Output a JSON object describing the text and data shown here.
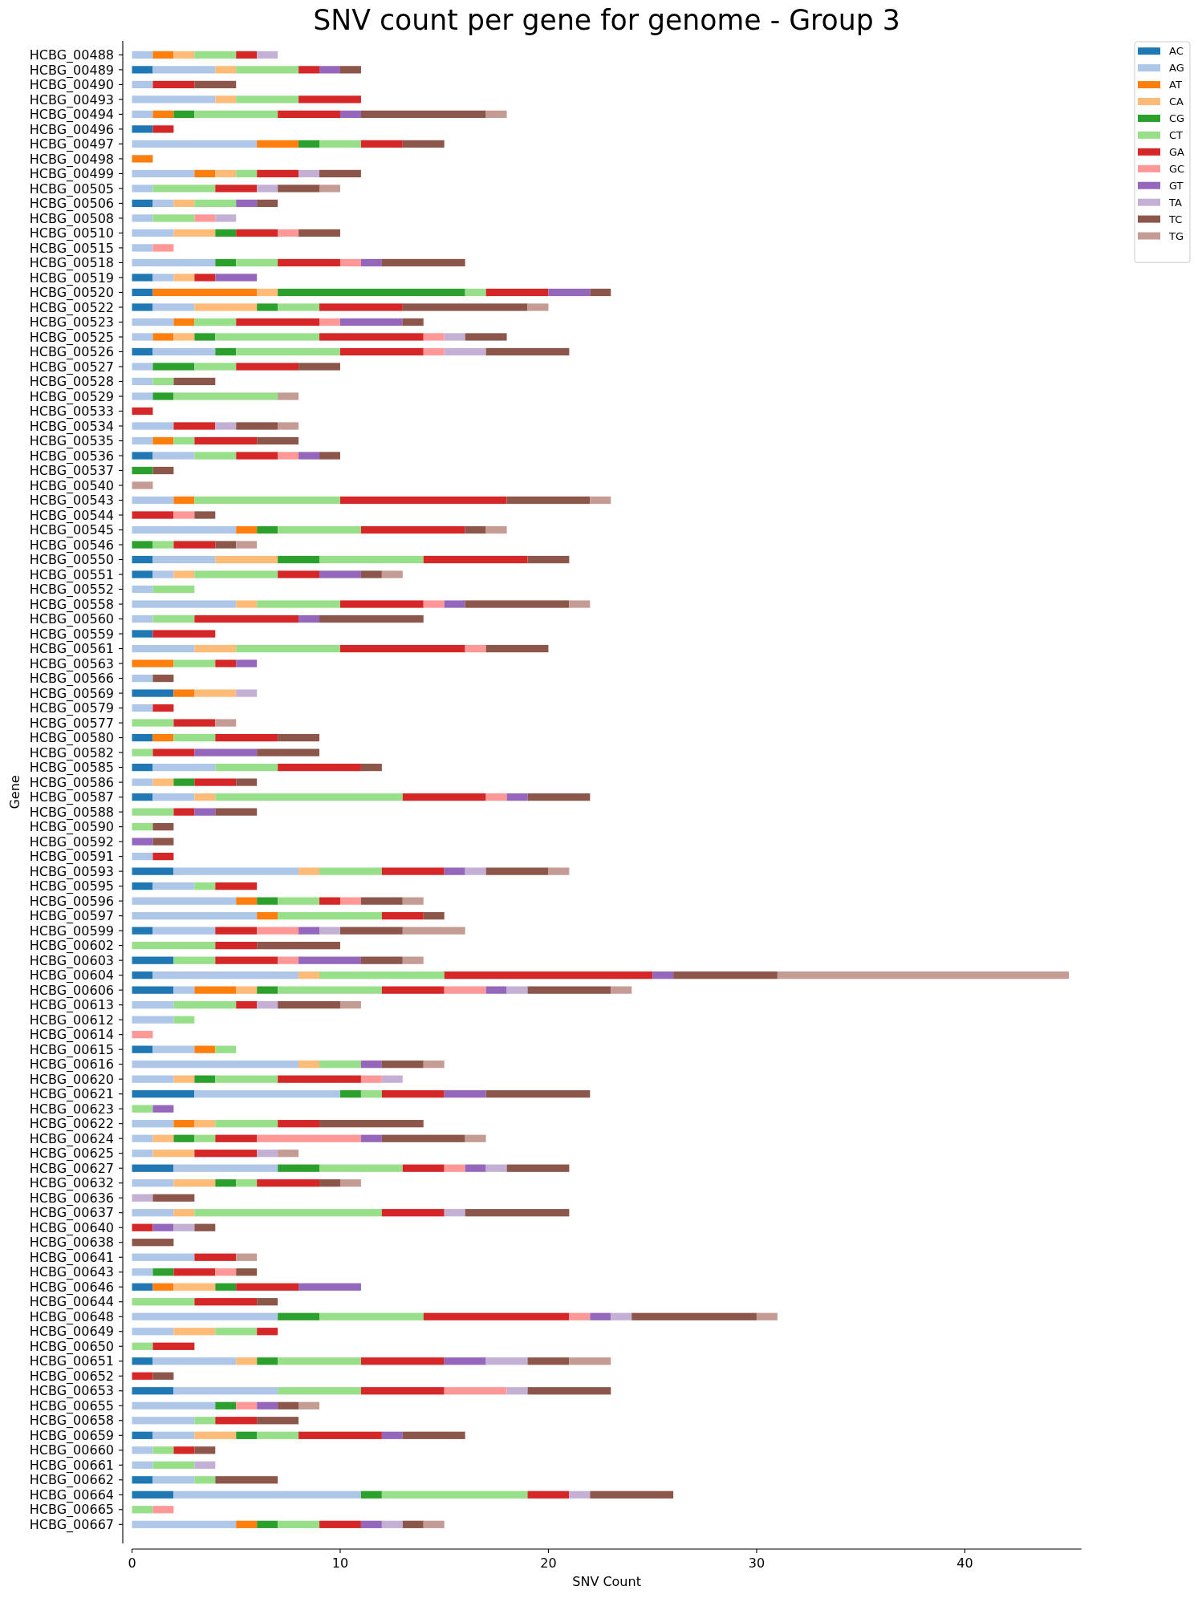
{
  "chart_data": {
    "type": "bar",
    "orientation": "horizontal",
    "stacked": true,
    "title": "SNV count per gene for genome - Group 3",
    "xlabel": "SNV Count",
    "ylabel": "Gene",
    "categories": [
      "HCBG_00488",
      "HCBG_00489",
      "HCBG_00490",
      "HCBG_00493",
      "HCBG_00494",
      "HCBG_00496",
      "HCBG_00497",
      "HCBG_00498",
      "HCBG_00499",
      "HCBG_00505",
      "HCBG_00506",
      "HCBG_00508",
      "HCBG_00510",
      "HCBG_00515",
      "HCBG_00518",
      "HCBG_00519",
      "HCBG_00520",
      "HCBG_00522",
      "HCBG_00523",
      "HCBG_00525",
      "HCBG_00526",
      "HCBG_00527",
      "HCBG_00528",
      "HCBG_00529",
      "HCBG_00533",
      "HCBG_00534",
      "HCBG_00535",
      "HCBG_00536",
      "HCBG_00537",
      "HCBG_00540",
      "HCBG_00543",
      "HCBG_00544",
      "HCBG_00545",
      "HCBG_00546",
      "HCBG_00550",
      "HCBG_00551",
      "HCBG_00552",
      "HCBG_00558",
      "HCBG_00560",
      "HCBG_00559",
      "HCBG_00561",
      "HCBG_00563",
      "HCBG_00566",
      "HCBG_00569",
      "HCBG_00579",
      "HCBG_00577",
      "HCBG_00580",
      "HCBG_00582",
      "HCBG_00585",
      "HCBG_00586",
      "HCBG_00587",
      "HCBG_00588",
      "HCBG_00590",
      "HCBG_00592",
      "HCBG_00591",
      "HCBG_00593",
      "HCBG_00595",
      "HCBG_00596",
      "HCBG_00597",
      "HCBG_00599",
      "HCBG_00602",
      "HCBG_00603",
      "HCBG_00604",
      "HCBG_00606",
      "HCBG_00613",
      "HCBG_00612",
      "HCBG_00614",
      "HCBG_00615",
      "HCBG_00616",
      "HCBG_00620",
      "HCBG_00621",
      "HCBG_00623",
      "HCBG_00622",
      "HCBG_00624",
      "HCBG_00625",
      "HCBG_00627",
      "HCBG_00632",
      "HCBG_00636",
      "HCBG_00637",
      "HCBG_00640",
      "HCBG_00638",
      "HCBG_00641",
      "HCBG_00643",
      "HCBG_00646",
      "HCBG_00644",
      "HCBG_00648",
      "HCBG_00649",
      "HCBG_00650",
      "HCBG_00651",
      "HCBG_00652",
      "HCBG_00653",
      "HCBG_00655",
      "HCBG_00658",
      "HCBG_00659",
      "HCBG_00660",
      "HCBG_00661",
      "HCBG_00662",
      "HCBG_00664",
      "HCBG_00665",
      "HCBG_00667"
    ],
    "series": [
      {
        "name": "AC",
        "color": "#1f77b4",
        "values": [
          0,
          1,
          0,
          0,
          0,
          1,
          0,
          0,
          0,
          0,
          1,
          0,
          0,
          0,
          0,
          1,
          1,
          1,
          0,
          0,
          1,
          0,
          0,
          0,
          0,
          0,
          0,
          1,
          0,
          0,
          0,
          0,
          0,
          0,
          1,
          1,
          0,
          0,
          0,
          1,
          0,
          0,
          0,
          2,
          0,
          0,
          1,
          0,
          1,
          0,
          1,
          0,
          0,
          0,
          0,
          2,
          1,
          0,
          0,
          1,
          0,
          2,
          1,
          2,
          0,
          0,
          0,
          1,
          0,
          0,
          3,
          0,
          0,
          0,
          0,
          2,
          0,
          0,
          0,
          0,
          0,
          0,
          0,
          1,
          0,
          0,
          0,
          0,
          1,
          0,
          2,
          0,
          0,
          1,
          0,
          0,
          1,
          2,
          0,
          0
        ]
      },
      {
        "name": "AG",
        "color": "#aec7e8",
        "values": [
          1,
          3,
          1,
          4,
          1,
          0,
          6,
          0,
          3,
          1,
          1,
          1,
          2,
          1,
          4,
          1,
          0,
          2,
          2,
          1,
          3,
          1,
          1,
          1,
          0,
          2,
          1,
          2,
          0,
          0,
          2,
          0,
          5,
          0,
          3,
          1,
          1,
          5,
          1,
          0,
          3,
          0,
          1,
          0,
          1,
          0,
          0,
          0,
          3,
          1,
          2,
          0,
          0,
          0,
          1,
          6,
          2,
          5,
          6,
          3,
          0,
          0,
          7,
          1,
          2,
          2,
          0,
          2,
          8,
          2,
          7,
          0,
          2,
          1,
          1,
          5,
          2,
          0,
          2,
          0,
          0,
          3,
          1,
          0,
          0,
          7,
          2,
          0,
          4,
          0,
          5,
          4,
          3,
          2,
          1,
          1,
          2,
          9,
          0,
          5
        ]
      },
      {
        "name": "AT",
        "color": "#ff7f0e",
        "values": [
          1,
          0,
          0,
          0,
          1,
          0,
          2,
          1,
          1,
          0,
          0,
          0,
          0,
          0,
          0,
          0,
          5,
          0,
          1,
          1,
          0,
          0,
          0,
          0,
          0,
          0,
          1,
          0,
          0,
          0,
          1,
          0,
          1,
          0,
          0,
          0,
          0,
          0,
          0,
          0,
          0,
          2,
          0,
          1,
          0,
          0,
          1,
          0,
          0,
          0,
          0,
          0,
          0,
          0,
          0,
          0,
          0,
          1,
          1,
          0,
          0,
          0,
          0,
          2,
          0,
          0,
          0,
          1,
          0,
          0,
          0,
          0,
          1,
          0,
          0,
          0,
          0,
          0,
          0,
          0,
          0,
          0,
          0,
          1,
          0,
          0,
          0,
          0,
          0,
          0,
          0,
          0,
          0,
          0,
          0,
          0,
          0,
          0,
          0,
          1
        ]
      },
      {
        "name": "CA",
        "color": "#ffbb78",
        "values": [
          1,
          1,
          0,
          1,
          0,
          0,
          0,
          0,
          1,
          0,
          1,
          0,
          2,
          0,
          0,
          1,
          1,
          3,
          0,
          1,
          0,
          0,
          0,
          0,
          0,
          0,
          0,
          0,
          0,
          0,
          0,
          0,
          0,
          0,
          3,
          1,
          0,
          1,
          0,
          0,
          2,
          0,
          0,
          2,
          0,
          0,
          0,
          0,
          0,
          1,
          1,
          0,
          0,
          0,
          0,
          1,
          0,
          0,
          0,
          0,
          0,
          0,
          1,
          1,
          0,
          0,
          0,
          0,
          1,
          1,
          0,
          0,
          1,
          1,
          2,
          0,
          2,
          0,
          1,
          0,
          0,
          0,
          0,
          2,
          0,
          0,
          2,
          0,
          1,
          0,
          0,
          0,
          0,
          2,
          0,
          0,
          0,
          0,
          0,
          0
        ]
      },
      {
        "name": "CG",
        "color": "#2ca02c",
        "values": [
          0,
          0,
          0,
          0,
          1,
          0,
          1,
          0,
          0,
          0,
          0,
          0,
          1,
          0,
          1,
          0,
          9,
          1,
          0,
          1,
          1,
          2,
          0,
          1,
          0,
          0,
          0,
          0,
          1,
          0,
          0,
          0,
          1,
          1,
          2,
          0,
          0,
          0,
          0,
          0,
          0,
          0,
          0,
          0,
          0,
          0,
          0,
          0,
          0,
          1,
          0,
          0,
          0,
          0,
          0,
          0,
          0,
          1,
          0,
          0,
          0,
          0,
          0,
          1,
          0,
          0,
          0,
          0,
          0,
          1,
          1,
          0,
          0,
          1,
          0,
          2,
          1,
          0,
          0,
          0,
          0,
          0,
          1,
          1,
          0,
          2,
          0,
          0,
          1,
          0,
          0,
          1,
          0,
          1,
          0,
          0,
          0,
          1,
          0,
          1
        ]
      },
      {
        "name": "CT",
        "color": "#98df8a",
        "values": [
          2,
          3,
          0,
          3,
          4,
          0,
          2,
          0,
          1,
          3,
          2,
          2,
          0,
          0,
          2,
          0,
          1,
          2,
          2,
          5,
          5,
          2,
          1,
          5,
          0,
          0,
          1,
          2,
          0,
          0,
          7,
          0,
          4,
          1,
          5,
          4,
          2,
          4,
          2,
          0,
          5,
          2,
          0,
          0,
          0,
          2,
          2,
          1,
          3,
          0,
          9,
          2,
          1,
          0,
          0,
          3,
          1,
          2,
          5,
          0,
          4,
          2,
          6,
          5,
          3,
          1,
          0,
          1,
          2,
          3,
          1,
          1,
          3,
          1,
          0,
          4,
          1,
          0,
          9,
          0,
          0,
          0,
          0,
          0,
          3,
          5,
          2,
          1,
          4,
          0,
          4,
          0,
          1,
          2,
          1,
          2,
          1,
          7,
          1,
          2
        ]
      },
      {
        "name": "GA",
        "color": "#d62728",
        "values": [
          1,
          1,
          2,
          3,
          3,
          1,
          2,
          0,
          2,
          2,
          0,
          0,
          2,
          0,
          3,
          1,
          3,
          4,
          4,
          5,
          4,
          3,
          0,
          0,
          1,
          2,
          3,
          2,
          0,
          0,
          8,
          2,
          5,
          2,
          5,
          2,
          0,
          4,
          5,
          3,
          6,
          1,
          0,
          0,
          1,
          2,
          3,
          2,
          4,
          2,
          4,
          1,
          0,
          0,
          1,
          3,
          2,
          1,
          2,
          2,
          2,
          3,
          10,
          3,
          1,
          0,
          0,
          0,
          0,
          4,
          3,
          0,
          2,
          2,
          3,
          2,
          3,
          0,
          3,
          1,
          0,
          2,
          2,
          3,
          3,
          7,
          1,
          2,
          4,
          1,
          4,
          0,
          2,
          4,
          1,
          0,
          0,
          2,
          0,
          2
        ]
      },
      {
        "name": "GC",
        "color": "#ff9896",
        "values": [
          0,
          0,
          0,
          0,
          0,
          0,
          0,
          0,
          0,
          0,
          0,
          1,
          1,
          1,
          1,
          0,
          0,
          0,
          1,
          1,
          1,
          0,
          0,
          0,
          0,
          0,
          0,
          1,
          0,
          0,
          0,
          1,
          0,
          0,
          0,
          0,
          0,
          1,
          0,
          0,
          1,
          0,
          0,
          0,
          0,
          0,
          0,
          0,
          0,
          0,
          1,
          0,
          0,
          0,
          0,
          0,
          0,
          1,
          0,
          2,
          0,
          1,
          0,
          2,
          0,
          0,
          1,
          0,
          0,
          1,
          0,
          0,
          0,
          5,
          0,
          1,
          0,
          0,
          0,
          0,
          0,
          0,
          1,
          0,
          0,
          1,
          0,
          0,
          0,
          0,
          3,
          1,
          0,
          0,
          0,
          0,
          0,
          0,
          1,
          0
        ]
      },
      {
        "name": "GT",
        "color": "#9467bd",
        "values": [
          0,
          1,
          0,
          0,
          1,
          0,
          0,
          0,
          0,
          0,
          1,
          0,
          0,
          0,
          1,
          2,
          2,
          0,
          3,
          0,
          0,
          0,
          0,
          0,
          0,
          0,
          0,
          1,
          0,
          0,
          0,
          0,
          0,
          0,
          0,
          2,
          0,
          1,
          1,
          0,
          0,
          1,
          0,
          0,
          0,
          0,
          0,
          3,
          0,
          0,
          1,
          1,
          0,
          1,
          0,
          1,
          0,
          0,
          0,
          1,
          0,
          3,
          1,
          1,
          0,
          0,
          0,
          0,
          1,
          0,
          2,
          1,
          0,
          1,
          0,
          1,
          0,
          0,
          0,
          1,
          0,
          0,
          0,
          3,
          0,
          1,
          0,
          0,
          2,
          0,
          0,
          1,
          0,
          1,
          0,
          0,
          0,
          0,
          0,
          1
        ]
      },
      {
        "name": "TA",
        "color": "#c5b0d5",
        "values": [
          1,
          0,
          0,
          0,
          0,
          0,
          0,
          0,
          1,
          1,
          0,
          1,
          0,
          0,
          0,
          0,
          0,
          0,
          0,
          1,
          2,
          0,
          0,
          0,
          0,
          1,
          0,
          0,
          0,
          0,
          0,
          0,
          0,
          0,
          0,
          0,
          0,
          0,
          0,
          0,
          0,
          0,
          0,
          1,
          0,
          0,
          0,
          0,
          0,
          0,
          0,
          0,
          0,
          0,
          0,
          1,
          0,
          0,
          0,
          1,
          0,
          0,
          0,
          1,
          1,
          0,
          0,
          0,
          0,
          1,
          0,
          0,
          0,
          0,
          1,
          1,
          0,
          1,
          1,
          1,
          0,
          0,
          0,
          0,
          0,
          1,
          0,
          0,
          2,
          0,
          1,
          0,
          0,
          0,
          0,
          1,
          0,
          1,
          0,
          1
        ]
      },
      {
        "name": "TC",
        "color": "#8c564b",
        "values": [
          0,
          1,
          2,
          0,
          6,
          0,
          2,
          0,
          2,
          2,
          1,
          0,
          2,
          0,
          4,
          0,
          1,
          6,
          1,
          2,
          4,
          2,
          2,
          0,
          0,
          2,
          2,
          1,
          1,
          0,
          4,
          1,
          1,
          1,
          2,
          1,
          0,
          5,
          5,
          0,
          3,
          0,
          1,
          0,
          0,
          0,
          2,
          3,
          1,
          1,
          3,
          2,
          1,
          1,
          0,
          3,
          0,
          2,
          1,
          3,
          4,
          2,
          5,
          4,
          3,
          0,
          0,
          0,
          2,
          0,
          5,
          0,
          5,
          4,
          0,
          3,
          1,
          2,
          5,
          1,
          2,
          0,
          1,
          0,
          1,
          6,
          0,
          0,
          2,
          1,
          4,
          1,
          2,
          3,
          1,
          0,
          3,
          4,
          0,
          1
        ]
      },
      {
        "name": "TG",
        "color": "#c49c94",
        "values": [
          0,
          0,
          0,
          0,
          1,
          0,
          0,
          0,
          0,
          1,
          0,
          0,
          0,
          0,
          0,
          0,
          0,
          1,
          0,
          0,
          0,
          0,
          0,
          1,
          0,
          1,
          0,
          0,
          0,
          1,
          1,
          0,
          1,
          1,
          0,
          1,
          0,
          1,
          0,
          0,
          0,
          0,
          0,
          0,
          0,
          1,
          0,
          0,
          0,
          0,
          0,
          0,
          0,
          0,
          0,
          1,
          0,
          1,
          0,
          3,
          0,
          1,
          14,
          1,
          1,
          0,
          0,
          0,
          1,
          0,
          0,
          0,
          0,
          1,
          1,
          0,
          1,
          0,
          0,
          0,
          0,
          1,
          0,
          0,
          0,
          1,
          0,
          0,
          2,
          0,
          0,
          1,
          0,
          0,
          0,
          0,
          0,
          0,
          0,
          1
        ]
      }
    ],
    "xlim": [
      0,
      45.6
    ],
    "xticks": [
      0,
      10,
      20,
      30,
      40
    ],
    "legend": "top right"
  }
}
